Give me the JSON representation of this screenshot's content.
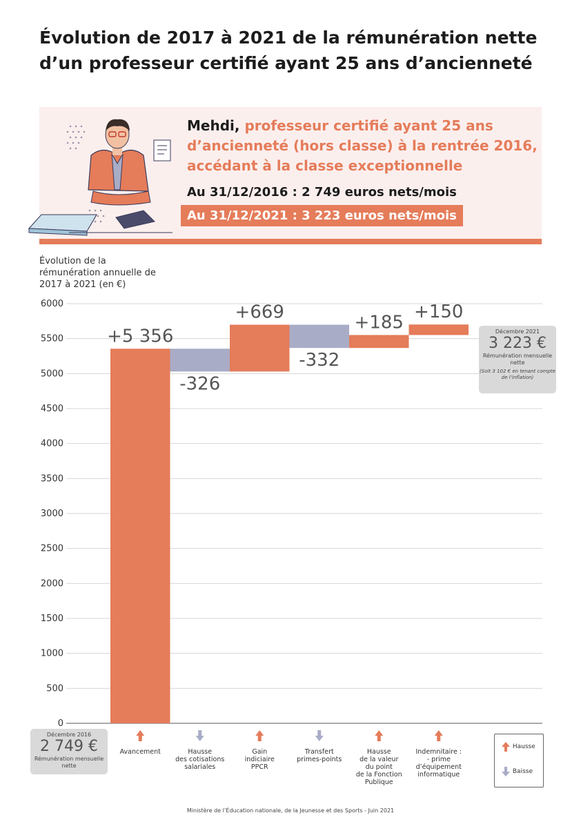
{
  "title_line1": "Évolution de 2017 à 2021 de la rémunération nette",
  "title_line2": "d’un professeur certifié ayant 25 ans d’ancienneté",
  "banner": {
    "name": "Mehdi,",
    "description": " professeur certifié ayant 25 ans d’ancienneté (hors classe) à la rentrée 2016, accédant à la classe exceptionnelle",
    "salary_2016": "Au 31/12/2016 : 2 749 euros nets/mois",
    "salary_2021": "Au 31/12/2021 : 3 223 euros nets/mois"
  },
  "start_box": {
    "date": "Décembre 2016",
    "value": "2 749 €",
    "label": "Rémunération mensuelle nette"
  },
  "end_box": {
    "date": "Décembre 2021",
    "value": "3 223 €",
    "label": "Rémunération mensuelle nette",
    "note": "(Soit 3 102 € en tenant compte de l’inflation)"
  },
  "legend": {
    "up": "Hausse",
    "down": "Baisse"
  },
  "footer": "Ministère de l’Éducation nationale, de la Jeunesse et des Sports - Juin 2021",
  "colors": {
    "up": "#e57c5a",
    "down": "#a9acc6",
    "banner_bg": "#fbefee",
    "box_bg": "#d9d9d9"
  },
  "chart_data": {
    "type": "waterfall",
    "ylabel": "Évolution de la rémunération annuelle de 2017 à 2021 (en €)",
    "ylim": [
      0,
      6000
    ],
    "yticks": [
      0,
      500,
      1000,
      1500,
      2000,
      2500,
      3000,
      3500,
      4000,
      4500,
      5000,
      5500,
      6000
    ],
    "grid": true,
    "steps": [
      {
        "category": [
          "Avancement"
        ],
        "value": 5356,
        "label": "+5 356",
        "direction": "up"
      },
      {
        "category": [
          "Hausse",
          "des cotisations",
          "salariales"
        ],
        "value": -326,
        "label": "-326",
        "direction": "down"
      },
      {
        "category": [
          "Gain",
          "indiciaire",
          "PPCR"
        ],
        "value": 669,
        "label": "+669",
        "direction": "up"
      },
      {
        "category": [
          "Transfert",
          "primes-points"
        ],
        "value": -332,
        "label": "-332",
        "direction": "down"
      },
      {
        "category": [
          "Hausse",
          "de la valeur",
          "du point",
          "de la Fonction",
          "Publique"
        ],
        "value": 185,
        "label": "+185",
        "direction": "up"
      },
      {
        "category": [
          "Indemnitaire :",
          "- prime",
          "d’équipement",
          "informatique"
        ],
        "value": 150,
        "label": "+150",
        "direction": "up"
      }
    ]
  }
}
